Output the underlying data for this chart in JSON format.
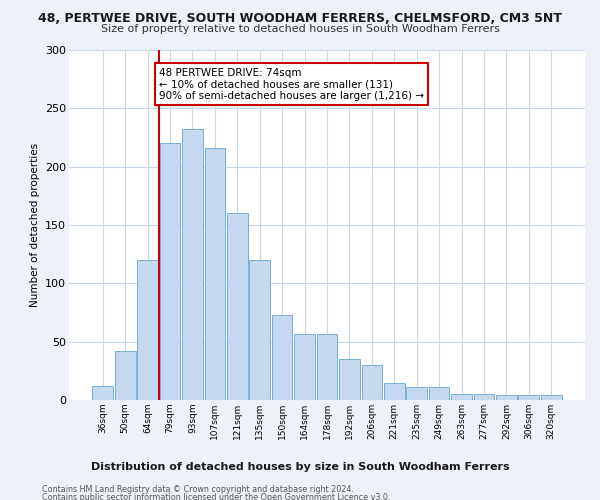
{
  "title": "48, PERTWEE DRIVE, SOUTH WOODHAM FERRERS, CHELMSFORD, CM3 5NT",
  "subtitle": "Size of property relative to detached houses in South Woodham Ferrers",
  "xlabel": "Distribution of detached houses by size in South Woodham Ferrers",
  "ylabel": "Number of detached properties",
  "bar_color": "#c5d8f0",
  "bar_edge_color": "#7aafd4",
  "categories": [
    "36sqm",
    "50sqm",
    "64sqm",
    "79sqm",
    "93sqm",
    "107sqm",
    "121sqm",
    "135sqm",
    "150sqm",
    "164sqm",
    "178sqm",
    "192sqm",
    "206sqm",
    "221sqm",
    "235sqm",
    "249sqm",
    "263sqm",
    "277sqm",
    "292sqm",
    "306sqm",
    "320sqm"
  ],
  "values": [
    12,
    42,
    120,
    220,
    232,
    216,
    160,
    120,
    73,
    57,
    57,
    35,
    30,
    15,
    11,
    11,
    5,
    5,
    4,
    4,
    4
  ],
  "ylim": [
    0,
    300
  ],
  "yticks": [
    0,
    50,
    100,
    150,
    200,
    250,
    300
  ],
  "vline_x_idx": 2.5,
  "vline_color": "#cc0000",
  "annotation_text": "48 PERTWEE DRIVE: 74sqm\n← 10% of detached houses are smaller (131)\n90% of semi-detached houses are larger (1,216) →",
  "annotation_box_color": "#ffffff",
  "annotation_box_edge": "#cc0000",
  "footer1": "Contains HM Land Registry data © Crown copyright and database right 2024.",
  "footer2": "Contains public sector information licensed under the Open Government Licence v3.0.",
  "bg_color": "#eef2f8",
  "plot_bg_color": "#ffffff",
  "grid_color": "#c8d8ea",
  "title_fontsize": 9,
  "subtitle_fontsize": 8
}
